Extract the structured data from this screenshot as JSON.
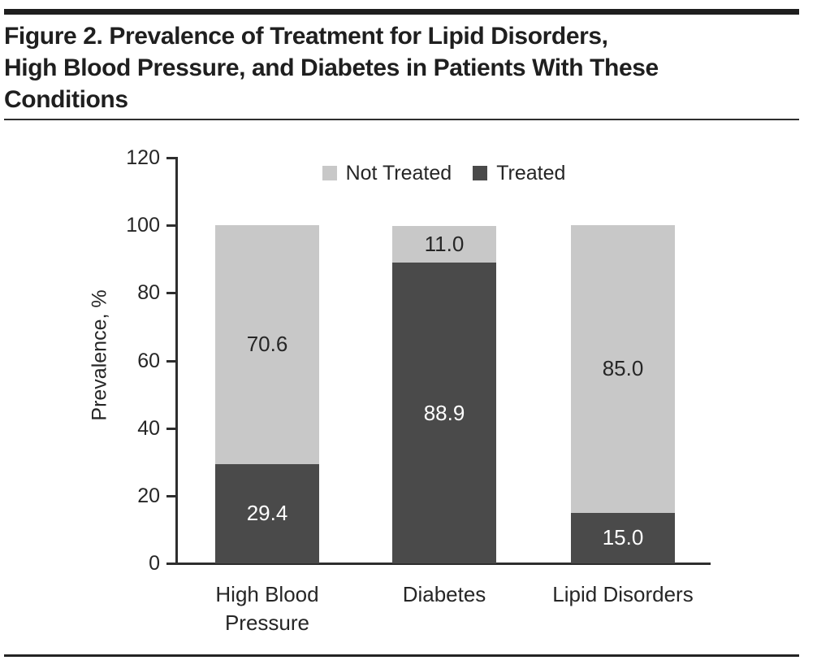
{
  "header": {
    "title_lines": [
      "Figure 2. Prevalence of Treatment for Lipid Disorders,",
      "High Blood Pressure, and Diabetes in Patients With These",
      "Conditions"
    ]
  },
  "chart_data": {
    "type": "bar",
    "stacked": true,
    "title": "Figure 2. Prevalence of Treatment for Lipid Disorders, High Blood Pressure, and Diabetes in Patients With These Conditions",
    "categories": [
      "High Blood\nPressure",
      "Diabetes",
      "Lipid Disorders"
    ],
    "series": [
      {
        "name": "Treated",
        "values": [
          29.4,
          88.9,
          15.0
        ],
        "color": "#4a4a4a",
        "label_color": "#ffffff"
      },
      {
        "name": "Not Treated",
        "values": [
          70.6,
          11.0,
          85.0
        ],
        "color": "#c8c8c8",
        "label_color": "#262626"
      }
    ],
    "xlabel": "",
    "ylabel": "Prevalence, %",
    "ylim": [
      0,
      120
    ],
    "yticks": [
      0,
      20,
      40,
      60,
      80,
      100,
      120
    ],
    "grid": false,
    "legend_position": "top",
    "legend_order": [
      "Not Treated",
      "Treated"
    ],
    "value_label_decimals": 1
  },
  "colors": {
    "treated": "#4a4a4a",
    "not_treated": "#c8c8c8",
    "text": "#262626",
    "rule": "#1e1e1e",
    "axis": "#2e2e2e",
    "background": "#ffffff"
  }
}
